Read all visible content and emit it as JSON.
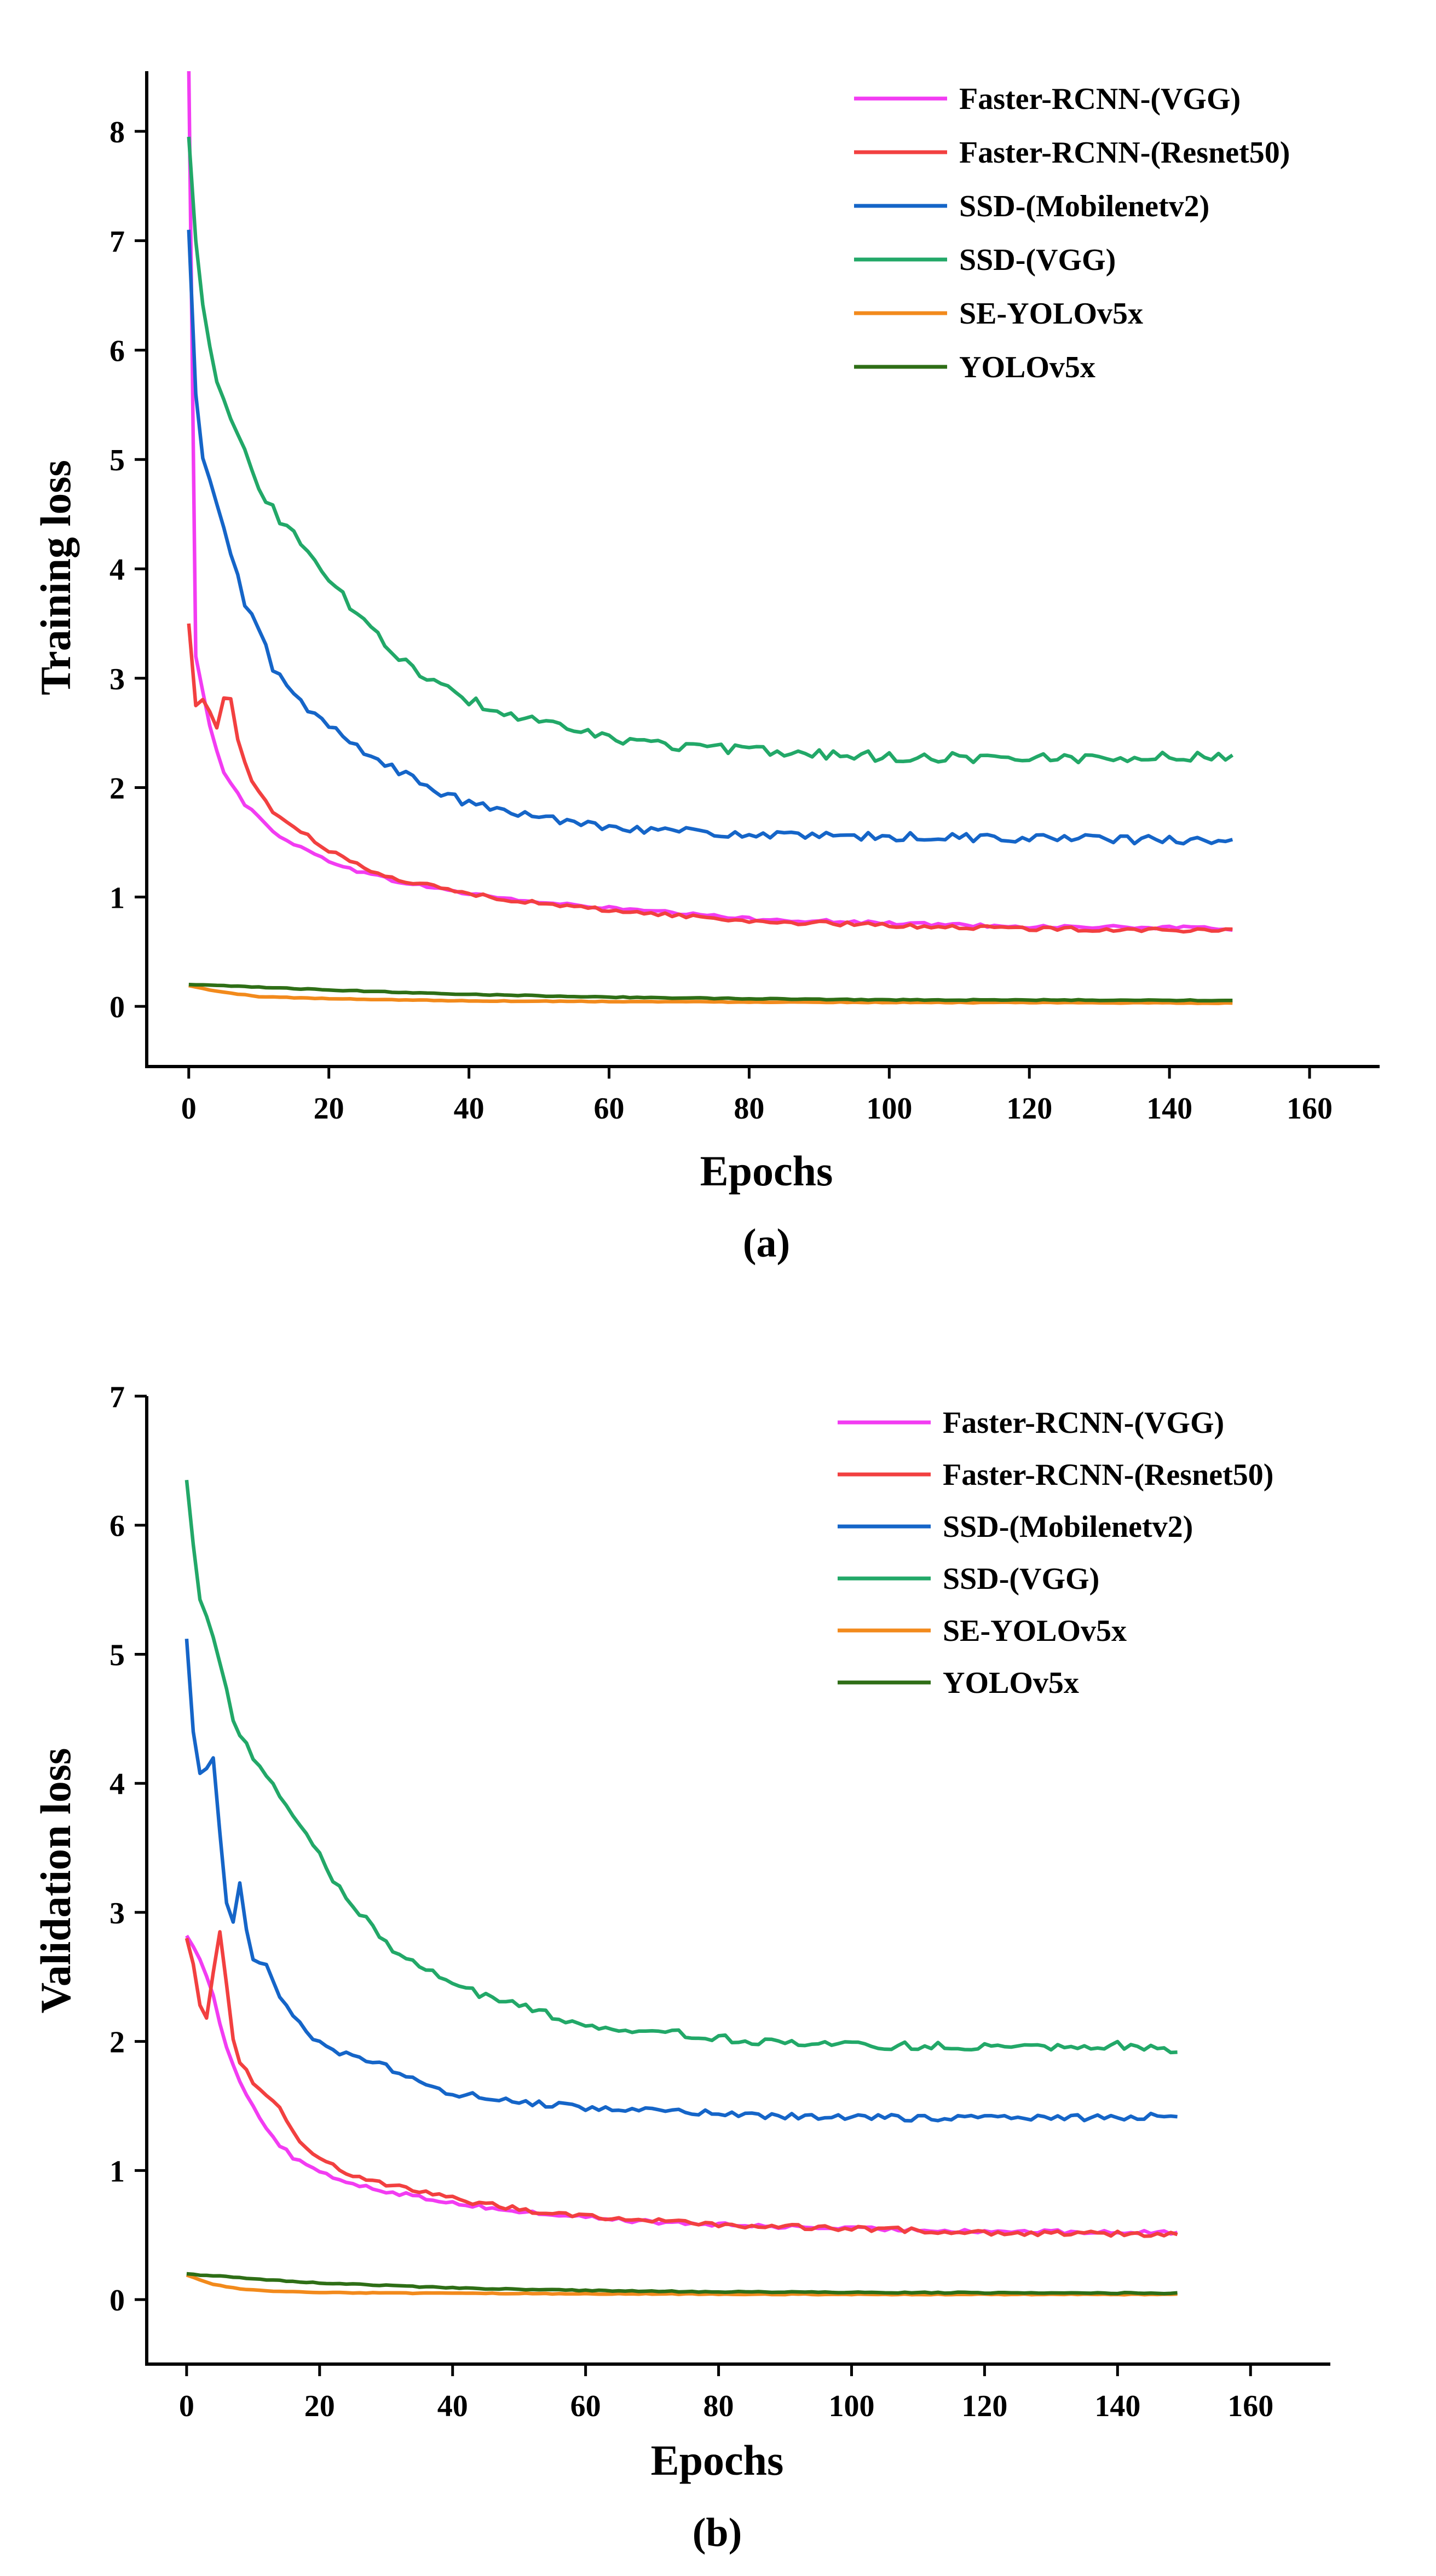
{
  "chart_data": [
    {
      "type": "line",
      "caption": "(a)",
      "xlabel": "Epochs",
      "ylabel": "Training loss",
      "xlim": [
        -6,
        170
      ],
      "ylim": [
        -0.55,
        8.55
      ],
      "xticks": [
        "0",
        "20",
        "40",
        "60",
        "80",
        "100",
        "120",
        "140",
        "160"
      ],
      "yticks": [
        "0",
        "1",
        "2",
        "3",
        "4",
        "5",
        "6",
        "7",
        "8"
      ],
      "legend_position": "top-right",
      "series": [
        {
          "name": "Faster-RCNN-(VGG)",
          "color": "#f23cf2",
          "anchors": [
            [
              0,
              8.6
            ],
            [
              1,
              3.2
            ],
            [
              3,
              2.55
            ],
            [
              5,
              2.15
            ],
            [
              8,
              1.85
            ],
            [
              12,
              1.6
            ],
            [
              16,
              1.45
            ],
            [
              20,
              1.33
            ],
            [
              25,
              1.22
            ],
            [
              30,
              1.14
            ],
            [
              40,
              1.03
            ],
            [
              50,
              0.95
            ],
            [
              60,
              0.9
            ],
            [
              70,
              0.85
            ],
            [
              80,
              0.8
            ],
            [
              100,
              0.76
            ],
            [
              120,
              0.73
            ],
            [
              140,
              0.72
            ],
            [
              149,
              0.71
            ]
          ],
          "noise": 0.015
        },
        {
          "name": "Faster-RCNN-(Resnet50)",
          "color": "#f24040",
          "anchors": [
            [
              0,
              3.5
            ],
            [
              1,
              2.75
            ],
            [
              2,
              2.8
            ],
            [
              3,
              2.7
            ],
            [
              4,
              2.55
            ],
            [
              5,
              2.82
            ],
            [
              6,
              2.8
            ],
            [
              7,
              2.45
            ],
            [
              9,
              2.05
            ],
            [
              12,
              1.78
            ],
            [
              16,
              1.6
            ],
            [
              20,
              1.42
            ],
            [
              25,
              1.27
            ],
            [
              30,
              1.16
            ],
            [
              40,
              1.03
            ],
            [
              50,
              0.94
            ],
            [
              60,
              0.88
            ],
            [
              70,
              0.83
            ],
            [
              80,
              0.78
            ],
            [
              100,
              0.74
            ],
            [
              120,
              0.71
            ],
            [
              140,
              0.7
            ],
            [
              149,
              0.69
            ]
          ],
          "noise": 0.018
        },
        {
          "name": "SSD-(Mobilenetv2)",
          "color": "#1565c8",
          "anchors": [
            [
              0,
              7.1
            ],
            [
              1,
              5.6
            ],
            [
              2,
              5.0
            ],
            [
              3,
              4.8
            ],
            [
              5,
              4.35
            ],
            [
              8,
              3.7
            ],
            [
              10,
              3.45
            ],
            [
              12,
              3.1
            ],
            [
              15,
              2.85
            ],
            [
              18,
              2.65
            ],
            [
              22,
              2.48
            ],
            [
              27,
              2.25
            ],
            [
              32,
              2.08
            ],
            [
              37,
              1.92
            ],
            [
              42,
              1.82
            ],
            [
              50,
              1.73
            ],
            [
              60,
              1.65
            ],
            [
              70,
              1.6
            ],
            [
              80,
              1.57
            ],
            [
              90,
              1.55
            ],
            [
              100,
              1.55
            ],
            [
              120,
              1.54
            ],
            [
              140,
              1.52
            ],
            [
              149,
              1.5
            ]
          ],
          "noise": 0.04
        },
        {
          "name": "SSD-(VGG)",
          "color": "#22a868",
          "anchors": [
            [
              0,
              7.95
            ],
            [
              1,
              7.0
            ],
            [
              2,
              6.4
            ],
            [
              4,
              5.75
            ],
            [
              6,
              5.4
            ],
            [
              8,
              5.05
            ],
            [
              10,
              4.75
            ],
            [
              13,
              4.45
            ],
            [
              16,
              4.25
            ],
            [
              20,
              3.9
            ],
            [
              24,
              3.6
            ],
            [
              28,
              3.3
            ],
            [
              32,
              3.1
            ],
            [
              36,
              2.92
            ],
            [
              40,
              2.8
            ],
            [
              45,
              2.68
            ],
            [
              50,
              2.6
            ],
            [
              55,
              2.52
            ],
            [
              60,
              2.45
            ],
            [
              70,
              2.38
            ],
            [
              80,
              2.34
            ],
            [
              90,
              2.31
            ],
            [
              100,
              2.28
            ],
            [
              120,
              2.27
            ],
            [
              140,
              2.28
            ],
            [
              149,
              2.28
            ]
          ],
          "noise": 0.045
        },
        {
          "name": "SE-YOLOv5x",
          "color": "#f28a1c",
          "anchors": [
            [
              0,
              0.19
            ],
            [
              3,
              0.15
            ],
            [
              6,
              0.12
            ],
            [
              10,
              0.09
            ],
            [
              20,
              0.07
            ],
            [
              40,
              0.05
            ],
            [
              80,
              0.04
            ],
            [
              149,
              0.03
            ]
          ],
          "noise": 0.003
        },
        {
          "name": "YOLOv5x",
          "color": "#2e6e16",
          "anchors": [
            [
              0,
              0.2
            ],
            [
              20,
              0.15
            ],
            [
              40,
              0.11
            ],
            [
              60,
              0.085
            ],
            [
              80,
              0.07
            ],
            [
              100,
              0.06
            ],
            [
              149,
              0.055
            ]
          ],
          "noise": 0.004
        }
      ]
    },
    {
      "type": "line",
      "caption": "(b)",
      "xlabel": "Epochs",
      "ylabel": "Validation loss",
      "xlim": [
        -6,
        172
      ],
      "ylim": [
        -0.5,
        7.0
      ],
      "xticks": [
        "0",
        "20",
        "40",
        "60",
        "80",
        "100",
        "120",
        "140",
        "160"
      ],
      "yticks": [
        "0",
        "1",
        "2",
        "3",
        "4",
        "5",
        "6",
        "7"
      ],
      "legend_position": "top-right",
      "series": [
        {
          "name": "Faster-RCNN-(VGG)",
          "color": "#f23cf2",
          "anchors": [
            [
              0,
              2.82
            ],
            [
              2,
              2.65
            ],
            [
              4,
              2.35
            ],
            [
              6,
              1.95
            ],
            [
              8,
              1.7
            ],
            [
              10,
              1.5
            ],
            [
              13,
              1.25
            ],
            [
              16,
              1.1
            ],
            [
              20,
              0.98
            ],
            [
              25,
              0.9
            ],
            [
              30,
              0.84
            ],
            [
              40,
              0.75
            ],
            [
              50,
              0.68
            ],
            [
              60,
              0.64
            ],
            [
              70,
              0.6
            ],
            [
              80,
              0.58
            ],
            [
              100,
              0.55
            ],
            [
              120,
              0.53
            ],
            [
              140,
              0.52
            ],
            [
              149,
              0.52
            ]
          ],
          "noise": 0.015
        },
        {
          "name": "Faster-RCNN-(Resnet50)",
          "color": "#f24040",
          "anchors": [
            [
              0,
              2.8
            ],
            [
              1,
              2.6
            ],
            [
              2,
              2.3
            ],
            [
              3,
              2.2
            ],
            [
              4,
              2.55
            ],
            [
              5,
              2.85
            ],
            [
              6,
              2.45
            ],
            [
              7,
              2.0
            ],
            [
              8,
              1.85
            ],
            [
              10,
              1.68
            ],
            [
              12,
              1.6
            ],
            [
              14,
              1.5
            ],
            [
              16,
              1.3
            ],
            [
              18,
              1.18
            ],
            [
              20,
              1.08
            ],
            [
              25,
              0.97
            ],
            [
              30,
              0.9
            ],
            [
              40,
              0.78
            ],
            [
              50,
              0.7
            ],
            [
              60,
              0.65
            ],
            [
              70,
              0.61
            ],
            [
              80,
              0.58
            ],
            [
              100,
              0.55
            ],
            [
              120,
              0.52
            ],
            [
              140,
              0.51
            ],
            [
              149,
              0.51
            ]
          ],
          "noise": 0.02
        },
        {
          "name": "SSD-(Mobilenetv2)",
          "color": "#1565c8",
          "anchors": [
            [
              0,
              5.12
            ],
            [
              1,
              4.4
            ],
            [
              2,
              4.1
            ],
            [
              3,
              4.12
            ],
            [
              4,
              4.2
            ],
            [
              5,
              3.6
            ],
            [
              6,
              3.05
            ],
            [
              7,
              2.92
            ],
            [
              8,
              3.25
            ],
            [
              9,
              2.85
            ],
            [
              10,
              2.65
            ],
            [
              12,
              2.58
            ],
            [
              14,
              2.35
            ],
            [
              16,
              2.22
            ],
            [
              18,
              2.1
            ],
            [
              20,
              1.98
            ],
            [
              25,
              1.88
            ],
            [
              30,
              1.8
            ],
            [
              35,
              1.68
            ],
            [
              40,
              1.6
            ],
            [
              50,
              1.53
            ],
            [
              60,
              1.49
            ],
            [
              70,
              1.46
            ],
            [
              80,
              1.44
            ],
            [
              90,
              1.42
            ],
            [
              100,
              1.41
            ],
            [
              120,
              1.41
            ],
            [
              140,
              1.41
            ],
            [
              149,
              1.43
            ]
          ],
          "noise": 0.025
        },
        {
          "name": "SSD-(VGG)",
          "color": "#22a868",
          "anchors": [
            [
              0,
              6.35
            ],
            [
              1,
              5.85
            ],
            [
              2,
              5.45
            ],
            [
              3,
              5.28
            ],
            [
              5,
              4.95
            ],
            [
              7,
              4.5
            ],
            [
              9,
              4.3
            ],
            [
              12,
              4.05
            ],
            [
              15,
              3.82
            ],
            [
              18,
              3.6
            ],
            [
              21,
              3.35
            ],
            [
              24,
              3.1
            ],
            [
              27,
              2.95
            ],
            [
              30,
              2.75
            ],
            [
              35,
              2.6
            ],
            [
              40,
              2.45
            ],
            [
              45,
              2.35
            ],
            [
              50,
              2.28
            ],
            [
              55,
              2.2
            ],
            [
              60,
              2.13
            ],
            [
              70,
              2.08
            ],
            [
              80,
              2.03
            ],
            [
              90,
              1.98
            ],
            [
              100,
              1.97
            ],
            [
              120,
              1.96
            ],
            [
              140,
              1.97
            ],
            [
              149,
              1.94
            ]
          ],
          "noise": 0.03
        },
        {
          "name": "SE-YOLOv5x",
          "color": "#f28a1c",
          "anchors": [
            [
              0,
              0.19
            ],
            [
              4,
              0.12
            ],
            [
              8,
              0.08
            ],
            [
              15,
              0.06
            ],
            [
              30,
              0.05
            ],
            [
              60,
              0.045
            ],
            [
              100,
              0.04
            ],
            [
              149,
              0.04
            ]
          ],
          "noise": 0.003
        },
        {
          "name": "YOLOv5x",
          "color": "#2e6e16",
          "anchors": [
            [
              0,
              0.2
            ],
            [
              10,
              0.16
            ],
            [
              20,
              0.13
            ],
            [
              30,
              0.11
            ],
            [
              40,
              0.09
            ],
            [
              60,
              0.07
            ],
            [
              80,
              0.06
            ],
            [
              100,
              0.055
            ],
            [
              149,
              0.05
            ]
          ],
          "noise": 0.004
        }
      ]
    }
  ]
}
